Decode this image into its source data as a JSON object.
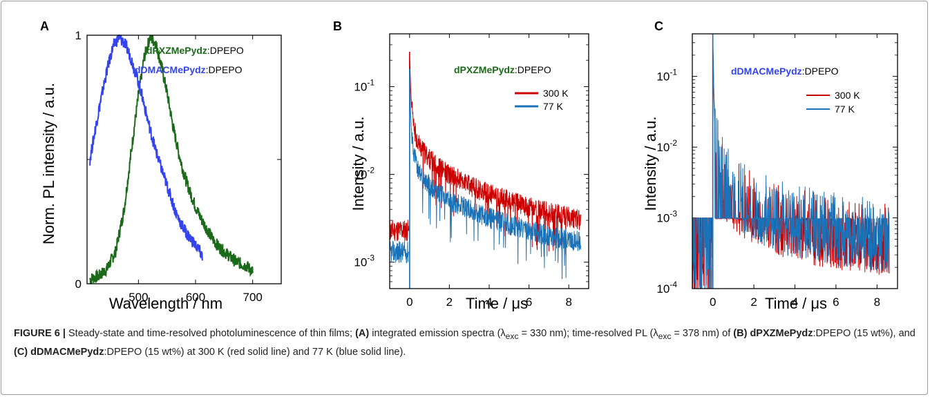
{
  "colors": {
    "green": "#1a6a1a",
    "blue_a": "#3344ee",
    "red": "#cc0000",
    "blue_bc": "#1a73b8",
    "anno_blue": "#3344ee"
  },
  "chart_data": [
    {
      "type": "line",
      "panel": "A",
      "xlabel": "Wavelength / nm",
      "ylabel": "Norm. PL intensity / a.u.",
      "xlim": [
        410,
        750
      ],
      "ylim": [
        0,
        1
      ],
      "xticks": [
        "500",
        "600",
        "700"
      ],
      "yticks": [
        "0",
        "1"
      ],
      "series": [
        {
          "name": "dPXZMePydz:DPEPO",
          "name_bold": "dPXZMePydz",
          "name_rest": ":DPEPO",
          "x": [
            415,
            430,
            445,
            460,
            475,
            490,
            500,
            510,
            520,
            530,
            540,
            550,
            560,
            570,
            580,
            590,
            600,
            610,
            620,
            630,
            640,
            650,
            660,
            670,
            680,
            690,
            700
          ],
          "y": [
            0.02,
            0.03,
            0.06,
            0.13,
            0.3,
            0.58,
            0.76,
            0.91,
            0.99,
            0.97,
            0.88,
            0.77,
            0.64,
            0.53,
            0.44,
            0.37,
            0.31,
            0.26,
            0.22,
            0.18,
            0.15,
            0.13,
            0.11,
            0.09,
            0.08,
            0.07,
            0.05
          ]
        },
        {
          "name": "dDMACMePydz:DPEPO",
          "name_bold": "dDMACMePydz",
          "name_rest": ":DPEPO",
          "x": [
            415,
            425,
            435,
            445,
            455,
            465,
            475,
            485,
            495,
            505,
            515,
            525,
            535,
            545,
            555,
            565,
            575,
            585,
            595,
            605,
            612
          ],
          "y": [
            0.5,
            0.63,
            0.75,
            0.86,
            0.95,
            0.99,
            0.97,
            0.92,
            0.85,
            0.77,
            0.67,
            0.58,
            0.5,
            0.43,
            0.36,
            0.29,
            0.24,
            0.2,
            0.17,
            0.14,
            0.11
          ]
        }
      ]
    },
    {
      "type": "line",
      "panel": "B",
      "yscale": "log",
      "xlabel": "Time / μs",
      "ylabel": "Intensity / a.u.",
      "xlim": [
        -1,
        9
      ],
      "ylim": [
        0.0005,
        0.4
      ],
      "xticks": [
        "0",
        "2",
        "4",
        "6",
        "8"
      ],
      "yticks": [
        "10",
        "10",
        "10"
      ],
      "ytick_exps": [
        "-3",
        "-2",
        "-1"
      ],
      "annotation_bold": "dPXZMePydz",
      "annotation_rest": ":DPEPO",
      "series": [
        {
          "name": "300 K",
          "x": [
            -1.0,
            -0.5,
            -0.05,
            0.0,
            0.05,
            0.1,
            0.2,
            0.4,
            0.7,
            1.0,
            1.5,
            2.0,
            3.0,
            4.0,
            5.0,
            6.0,
            7.0,
            8.0,
            8.6
          ],
          "y": [
            0.0023,
            0.0023,
            0.0023,
            0.25,
            0.1,
            0.06,
            0.035,
            0.024,
            0.018,
            0.015,
            0.012,
            0.01,
            0.0075,
            0.006,
            0.005,
            0.0042,
            0.0037,
            0.0033,
            0.003
          ]
        },
        {
          "name": "77 K",
          "x": [
            -1.0,
            -0.5,
            -0.05,
            0.0,
            0.05,
            0.1,
            0.2,
            0.4,
            0.7,
            1.0,
            1.5,
            2.0,
            3.0,
            4.0,
            5.0,
            6.0,
            7.0,
            8.0,
            8.6
          ],
          "y": [
            0.0013,
            0.0013,
            0.0013,
            0.16,
            0.05,
            0.03,
            0.018,
            0.012,
            0.009,
            0.0075,
            0.006,
            0.005,
            0.004,
            0.0032,
            0.0027,
            0.0023,
            0.002,
            0.0018,
            0.0017
          ]
        }
      ]
    },
    {
      "type": "line",
      "panel": "C",
      "yscale": "log",
      "xlabel": "Time / μs",
      "ylabel": "Intensity / a.u.",
      "xlim": [
        -1,
        9
      ],
      "ylim": [
        0.0001,
        0.4
      ],
      "xticks": [
        "0",
        "2",
        "4",
        "6",
        "8"
      ],
      "yticks": [
        "10",
        "10",
        "10",
        "10"
      ],
      "ytick_exps": [
        "-4",
        "-3",
        "-2",
        "-1"
      ],
      "annotation_bold": "dDMACMePydz",
      "annotation_rest": ":DPEPO",
      "series": [
        {
          "name": "300 K",
          "x": [
            -1.0,
            -0.5,
            -0.05,
            0.0,
            0.05,
            0.1,
            0.2,
            0.4,
            0.7,
            1.0,
            1.5,
            2.0,
            3.0,
            4.0,
            5.0,
            6.0,
            7.0,
            8.0,
            8.6
          ],
          "y": [
            0.001,
            0.001,
            0.001,
            0.4,
            0.05,
            0.02,
            0.008,
            0.004,
            0.0028,
            0.0022,
            0.0017,
            0.0014,
            0.001,
            0.0008,
            0.0007,
            0.0006,
            0.0006,
            0.0005,
            0.0005
          ]
        },
        {
          "name": "77 K",
          "x": [
            -1.0,
            -0.5,
            -0.05,
            0.0,
            0.05,
            0.1,
            0.2,
            0.4,
            0.7,
            1.0,
            1.5,
            2.0,
            3.0,
            4.0,
            5.0,
            6.0,
            7.0,
            8.0,
            8.6
          ],
          "y": [
            0.001,
            0.001,
            0.001,
            0.4,
            0.06,
            0.025,
            0.01,
            0.005,
            0.0033,
            0.0025,
            0.0019,
            0.0015,
            0.0011,
            0.0009,
            0.0008,
            0.0007,
            0.0006,
            0.0006,
            0.0005
          ]
        }
      ]
    }
  ],
  "caption": {
    "figure_label": "FIGURE 6 |",
    "t1": " Steady-state and time-resolved photoluminescence of thin films; ",
    "a": "(A)",
    "t2": " integrated emission spectra (λ",
    "sub1": "exc",
    "t3": " = 330 nm); time-resolved PL (λ",
    "sub2": "exc",
    "t4": " = 378 nm) of ",
    "b": "(B)",
    "b_comp": "dPXZMePydz",
    "t5": ":DPEPO (15 wt%), and ",
    "c": "(C)",
    "c_comp": "dDMACMePydz",
    "t6": ":DPEPO (15 wt%) at 300 K (red solid line) and 77 K (blue solid line)."
  }
}
